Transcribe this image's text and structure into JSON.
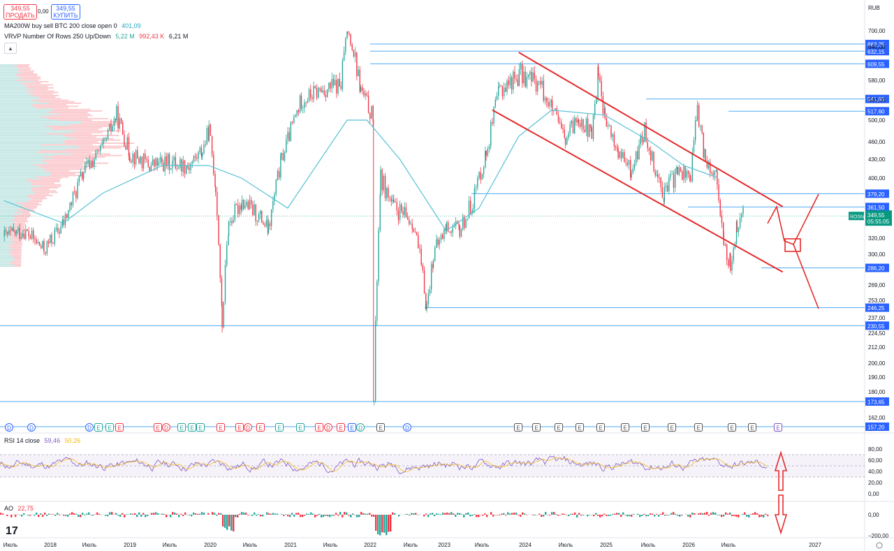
{
  "header": {
    "sell_price": "349,55",
    "sell_label": "ПРОДАТЬ",
    "spread": "0,00",
    "buy_price": "349,55",
    "buy_label": "КУПИТЬ",
    "currency": "RUB",
    "legend1_name": "MA200W buy sell BTC 200 close open 0",
    "legend1_value": "401,09",
    "legend2_name": "VRVP Number Of Rows 250 Up/Down",
    "legend2_v1": "5,22 M",
    "legend2_v2": "992,43 K",
    "legend2_v3": "6,21 M",
    "rsi_name": "RSI 14 close",
    "rsi_v1": "59,46",
    "rsi_v2": "50,26",
    "ao_name": "AO",
    "ao_value": "22,75",
    "ticker": "ROSN",
    "last_price": "349,55",
    "countdown": "05:55:05",
    "logo": "17"
  },
  "chart_data": {
    "type": "candlestick",
    "title": "ROSN",
    "currency": "RUB",
    "x_ticks": [
      "Июль",
      "2018",
      "Июль",
      "2019",
      "Июль",
      "2020",
      "Июль",
      "2021",
      "Июль",
      "2022",
      "Июль",
      "2023",
      "Июль",
      "2024",
      "Июль",
      "2025",
      "Июль",
      "2026",
      "Июль",
      "2027"
    ],
    "y_ticks": [
      "700,00",
      "640,00",
      "580,00",
      "540,00",
      "500,00",
      "460,00",
      "430,00",
      "400,00",
      "320,00",
      "300,00",
      "269,00",
      "253,00",
      "237,00",
      "224,50",
      "212,00",
      "200,00",
      "190,00",
      "180,00",
      "162,00"
    ],
    "price_levels": [
      "863,25",
      "632,15",
      "609,55",
      "541,80",
      "517,60",
      "379,20",
      "361,50",
      "286,20",
      "246,25",
      "230,55",
      "173,65",
      "157,20"
    ],
    "current_price": 349.55,
    "price_path": [
      [
        "2017-06",
        322
      ],
      [
        "2017-09",
        330
      ],
      [
        "2017-12",
        305
      ],
      [
        "2018-03",
        340
      ],
      [
        "2018-06",
        410
      ],
      [
        "2018-09",
        450
      ],
      [
        "2018-11",
        510
      ],
      [
        "2019-01",
        440
      ],
      [
        "2019-04",
        420
      ],
      [
        "2019-07",
        425
      ],
      [
        "2019-10",
        420
      ],
      [
        "2019-12",
        445
      ],
      [
        "2020-01",
        480
      ],
      [
        "2020-02",
        390
      ],
      [
        "2020-03",
        231
      ],
      [
        "2020-04",
        340
      ],
      [
        "2020-06",
        370
      ],
      [
        "2020-09",
        345
      ],
      [
        "2020-10",
        330
      ],
      [
        "2020-12",
        430
      ],
      [
        "2021-03",
        540
      ],
      [
        "2021-06",
        560
      ],
      [
        "2021-09",
        570
      ],
      [
        "2021-10",
        700
      ],
      [
        "2021-12",
        560
      ],
      [
        "2022-02",
        500
      ],
      [
        "2022-02",
        174
      ],
      [
        "2022-03",
        400
      ],
      [
        "2022-05",
        360
      ],
      [
        "2022-08",
        340
      ],
      [
        "2022-10",
        247
      ],
      [
        "2022-11",
        300
      ],
      [
        "2023-01",
        335
      ],
      [
        "2023-03",
        330
      ],
      [
        "2023-05",
        370
      ],
      [
        "2023-07",
        440
      ],
      [
        "2023-09",
        560
      ],
      [
        "2023-12",
        590
      ],
      [
        "2024-03",
        575
      ],
      [
        "2024-05",
        520
      ],
      [
        "2024-07",
        460
      ],
      [
        "2024-09",
        510
      ],
      [
        "2024-11",
        470
      ],
      [
        "2024-12",
        600
      ],
      [
        "2025-01",
        500
      ],
      [
        "2025-03",
        440
      ],
      [
        "2025-05",
        410
      ],
      [
        "2025-07",
        480
      ],
      [
        "2025-09",
        400
      ],
      [
        "2025-10",
        380
      ],
      [
        "2025-12",
        410
      ],
      [
        "2026-02",
        405
      ],
      [
        "2026-03",
        520
      ],
      [
        "2026-04",
        440
      ],
      [
        "2026-06",
        400
      ],
      [
        "2026-07",
        310
      ],
      [
        "2026-08",
        290
      ],
      [
        "2026-09",
        335
      ],
      [
        "2026-10",
        349.55
      ]
    ],
    "ma200w": [
      [
        "2017-06",
        370
      ],
      [
        "2018-03",
        340
      ],
      [
        "2018-09",
        380
      ],
      [
        "2019-06",
        420
      ],
      [
        "2020-01",
        420
      ],
      [
        "2020-06",
        400
      ],
      [
        "2021-01",
        360
      ],
      [
        "2021-06",
        430
      ],
      [
        "2021-10",
        500
      ],
      [
        "2022-01",
        500
      ],
      [
        "2022-06",
        430
      ],
      [
        "2023-01",
        330
      ],
      [
        "2023-06",
        360
      ],
      [
        "2023-12",
        470
      ],
      [
        "2024-05",
        520
      ],
      [
        "2025-01",
        510
      ],
      [
        "2025-08",
        460
      ],
      [
        "2026-01",
        420
      ],
      [
        "2026-06",
        401.09
      ]
    ],
    "channel": [
      {
        "from": [
          "2023-12",
          630
        ],
        "to": [
          "2027-04",
          362
        ]
      },
      {
        "from": [
          "2023-08",
          520
        ],
        "to": [
          "2027-04",
          282
        ]
      }
    ],
    "rsi": {
      "name": "RSI 14 close",
      "value": 59.46,
      "ma": 50.26,
      "range": [
        0,
        100
      ],
      "y_ticks": [
        "80,00",
        "60,00",
        "40,00",
        "20,00",
        "0,00"
      ],
      "bands": [
        30,
        70
      ]
    },
    "ao": {
      "name": "AO",
      "value": 22.75,
      "y_ticks": [
        "0,00",
        "−200,00"
      ]
    }
  }
}
